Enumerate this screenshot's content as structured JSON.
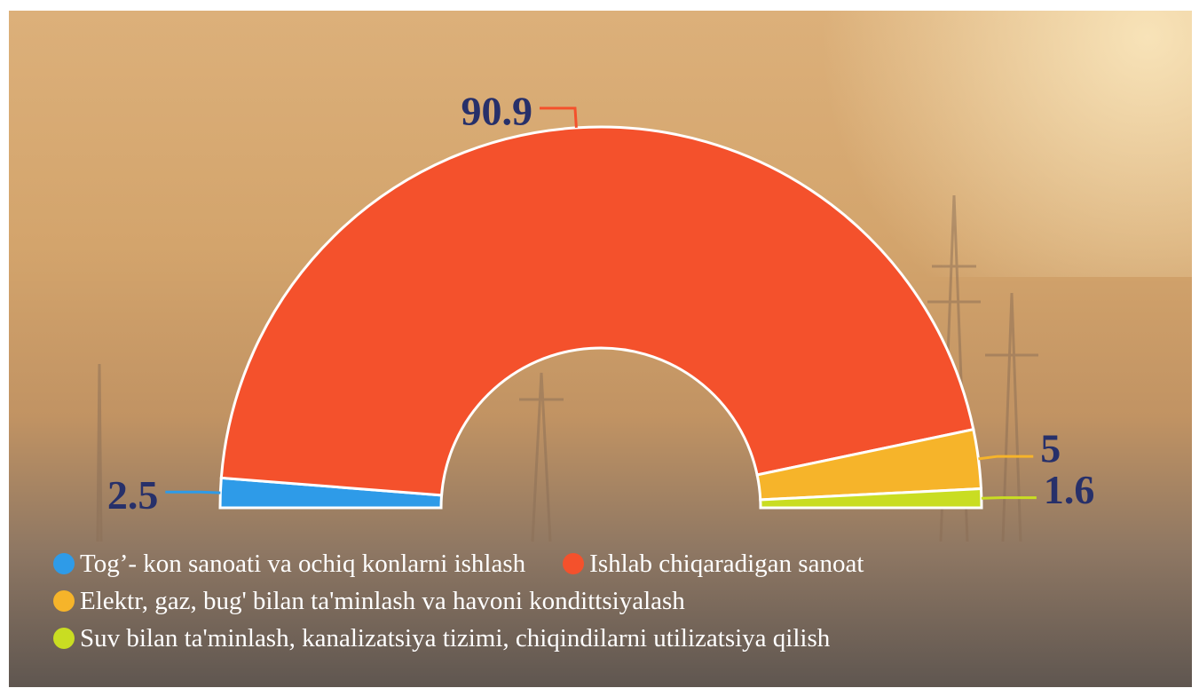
{
  "chart_data": {
    "type": "pie",
    "categories": [
      "Tog’- kon sanoati va ochiq konlarni ishlash",
      "Ishlab chiqaradigan sanoat",
      "Elektr, gaz, bug' bilan ta'minlash va havoni kondittsiyalash",
      "Suv bilan ta'minlash, kanalizatsiya tizimi, chiqindilarni utilizatsiya qilish"
    ],
    "values": [
      2.5,
      90.9,
      5,
      1.6
    ],
    "colors": [
      "#2e9be8",
      "#f4512c",
      "#f6b42a",
      "#c9dd22"
    ]
  }
}
